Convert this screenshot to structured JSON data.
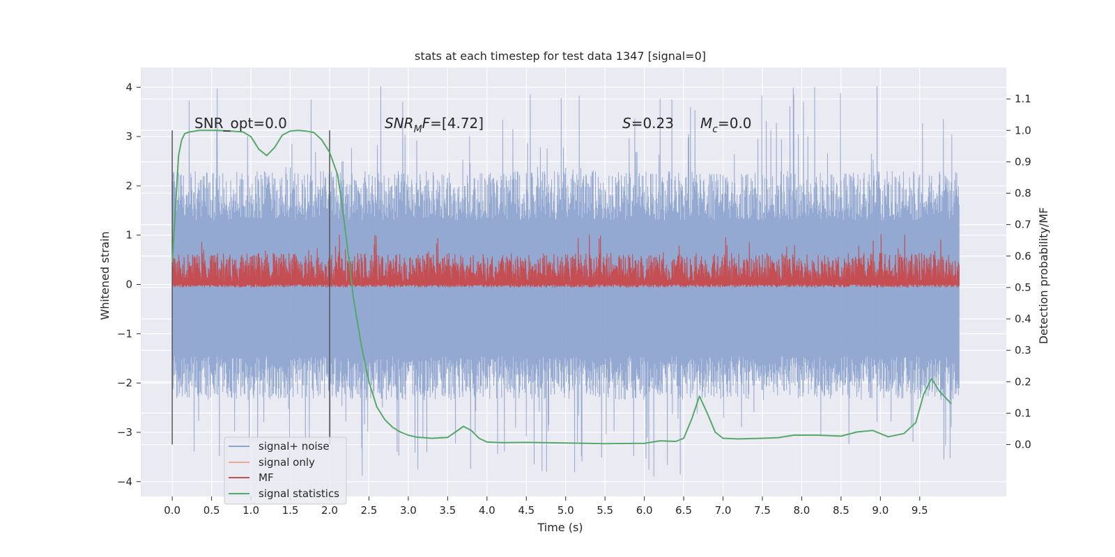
{
  "chart_data": {
    "type": "line",
    "title": "stats at each timestep for test data 1347 [signal=0]",
    "xlabel": "Time (s)",
    "ylabel": "Whitened strain",
    "y2label": "Detection probability/MF",
    "xlim": [
      -0.4,
      10.6
    ],
    "ylim": [
      -4.3,
      4.4
    ],
    "y2lim": [
      -0.165,
      1.2
    ],
    "xticks": [
      "0.0",
      "0.5",
      "1.0",
      "1.5",
      "2.0",
      "2.5",
      "3.0",
      "3.5",
      "4.0",
      "4.5",
      "5.0",
      "5.5",
      "6.0",
      "6.5",
      "7.0",
      "7.5",
      "8.0",
      "8.5",
      "9.0",
      "9.5"
    ],
    "yticks": [
      "−4",
      "−3",
      "−2",
      "−1",
      "0",
      "1",
      "2",
      "3",
      "4"
    ],
    "y2ticks": [
      "0.0",
      "0.1",
      "0.2",
      "0.3",
      "0.4",
      "0.5",
      "0.6",
      "0.7",
      "0.8",
      "0.9",
      "1.0",
      "1.1"
    ],
    "grid": true,
    "legend_position": "lower-left",
    "annotations": {
      "snr_opt": "SNR_opt=0.0",
      "snr_mf": "=[4.72]",
      "s": "=0.23",
      "mc": "=0.0"
    },
    "vlines": [
      0.0,
      2.0
    ],
    "series": [
      {
        "name": "signal+ noise",
        "color": "#8fa5cf",
        "axis": "left",
        "x": [
          0,
          10
        ],
        "noise_band": [
          -1.45,
          1.3
        ],
        "spike_range": [
          -3.9,
          4.05
        ]
      },
      {
        "name": "signal only",
        "color": "#f0a990",
        "axis": "left",
        "x": [
          0,
          10
        ],
        "values": [
          0,
          0
        ]
      },
      {
        "name": "MF",
        "color": "#c44e52",
        "axis": "right",
        "x": [
          0,
          10
        ],
        "band": [
          0.5,
          0.61
        ],
        "spike_max": 0.67
      },
      {
        "name": "signal statistics",
        "color": "#55a868",
        "axis": "right",
        "x": [
          0.0,
          0.04,
          0.08,
          0.12,
          0.16,
          0.22,
          0.35,
          0.55,
          0.75,
          0.9,
          1.0,
          1.1,
          1.2,
          1.3,
          1.4,
          1.5,
          1.6,
          1.7,
          1.8,
          1.9,
          1.95,
          2.0,
          2.1,
          2.15,
          2.2,
          2.25,
          2.3,
          2.4,
          2.5,
          2.6,
          2.7,
          2.8,
          2.9,
          3.0,
          3.1,
          3.3,
          3.5,
          3.6,
          3.7,
          3.8,
          3.9,
          4.0,
          4.2,
          4.5,
          5.0,
          5.5,
          6.0,
          6.2,
          6.4,
          6.5,
          6.6,
          6.7,
          6.8,
          6.9,
          7.0,
          7.2,
          7.5,
          7.7,
          7.9,
          8.2,
          8.5,
          8.7,
          8.9,
          9.1,
          9.3,
          9.45,
          9.55,
          9.65,
          9.75,
          9.9
        ],
        "values": [
          0.58,
          0.75,
          0.92,
          0.97,
          0.99,
          0.995,
          1.0,
          1.0,
          0.998,
          0.995,
          0.98,
          0.94,
          0.92,
          0.945,
          0.985,
          0.998,
          1.0,
          0.998,
          0.993,
          0.97,
          0.95,
          0.93,
          0.86,
          0.78,
          0.68,
          0.58,
          0.47,
          0.32,
          0.2,
          0.12,
          0.08,
          0.055,
          0.04,
          0.03,
          0.024,
          0.02,
          0.023,
          0.04,
          0.058,
          0.045,
          0.02,
          0.008,
          0.006,
          0.007,
          0.005,
          0.003,
          0.004,
          0.012,
          0.01,
          0.02,
          0.08,
          0.154,
          0.1,
          0.04,
          0.02,
          0.018,
          0.02,
          0.022,
          0.03,
          0.03,
          0.027,
          0.04,
          0.045,
          0.025,
          0.035,
          0.07,
          0.16,
          0.21,
          0.17,
          0.13
        ]
      }
    ]
  }
}
